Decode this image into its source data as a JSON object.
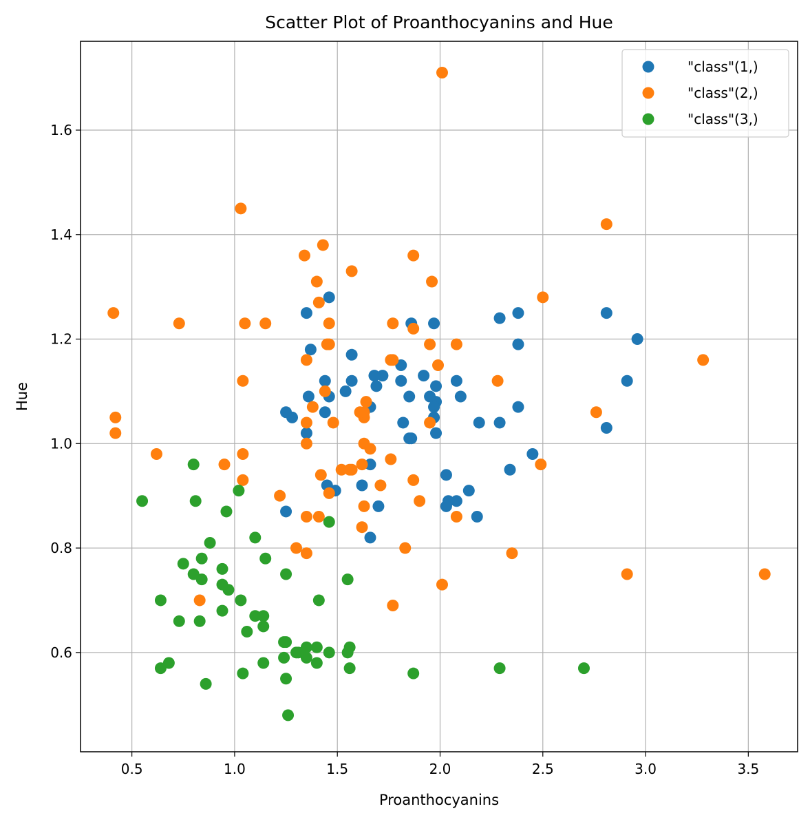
{
  "chart_data": {
    "type": "scatter",
    "title": "Scatter Plot of Proanthocyanins and Hue",
    "xlabel": "Proanthocyanins",
    "ylabel": "Hue",
    "xlim": [
      0.25,
      3.74
    ],
    "ylim": [
      0.41,
      1.77
    ],
    "xticks": [
      0.5,
      1.0,
      1.5,
      2.0,
      2.5,
      3.0,
      3.5
    ],
    "xtick_labels": [
      "0.5",
      "1.0",
      "1.5",
      "2.0",
      "2.5",
      "3.0",
      "3.5"
    ],
    "yticks": [
      0.6,
      0.8,
      1.0,
      1.2,
      1.4,
      1.6
    ],
    "ytick_labels": [
      "0.6",
      "0.8",
      "1.0",
      "1.2",
      "1.4",
      "1.6"
    ],
    "grid": true,
    "legend_position": "top-right",
    "series": [
      {
        "name": "\"class\"(1,)",
        "color": "#1f77b4",
        "points": [
          [
            2.29,
            1.04
          ],
          [
            1.28,
            1.05
          ],
          [
            2.81,
            1.03
          ],
          [
            2.18,
            0.86
          ],
          [
            1.82,
            1.04
          ],
          [
            1.97,
            1.05
          ],
          [
            1.98,
            1.02
          ],
          [
            1.25,
            1.06
          ],
          [
            1.98,
            1.08
          ],
          [
            1.85,
            1.01
          ],
          [
            2.38,
            1.25
          ],
          [
            1.57,
            1.17
          ],
          [
            1.81,
            1.15
          ],
          [
            2.81,
            1.25
          ],
          [
            2.96,
            1.2
          ],
          [
            1.46,
            1.28
          ],
          [
            1.97,
            1.07
          ],
          [
            1.72,
            1.13
          ],
          [
            1.86,
            1.23
          ],
          [
            1.66,
            0.96
          ],
          [
            2.1,
            1.09
          ],
          [
            1.25,
            0.87
          ],
          [
            1.98,
            1.11
          ],
          [
            1.85,
            1.09
          ],
          [
            2.38,
            1.07
          ],
          [
            1.57,
            1.12
          ],
          [
            1.81,
            1.12
          ],
          [
            1.35,
            1.25
          ],
          [
            2.03,
            0.94
          ],
          [
            1.66,
            0.82
          ],
          [
            1.45,
            0.92
          ],
          [
            1.69,
            1.11
          ],
          [
            1.62,
            0.92
          ],
          [
            2.08,
            0.89
          ],
          [
            2.34,
            0.95
          ],
          [
            1.46,
            1.09
          ],
          [
            1.35,
            1.02
          ],
          [
            2.29,
            1.24
          ],
          [
            2.19,
            1.04
          ],
          [
            1.66,
            1.07
          ],
          [
            2.14,
            0.91
          ],
          [
            2.38,
            1.19
          ],
          [
            1.54,
            1.1
          ],
          [
            1.37,
            1.18
          ],
          [
            1.95,
            1.09
          ],
          [
            1.44,
            1.12
          ],
          [
            2.45,
            0.98
          ],
          [
            2.91,
            1.12
          ],
          [
            2.03,
            0.88
          ],
          [
            2.04,
            0.89
          ],
          [
            1.68,
            1.13
          ],
          [
            1.7,
            0.88
          ],
          [
            1.86,
            1.01
          ],
          [
            2.08,
            1.12
          ],
          [
            1.49,
            0.91
          ],
          [
            1.36,
            1.09
          ],
          [
            1.92,
            1.13
          ],
          [
            1.97,
            1.23
          ],
          [
            1.44,
            1.06
          ]
        ]
      },
      {
        "name": "\"class\"(2,)",
        "color": "#ff7f0e",
        "points": [
          [
            0.42,
            1.05
          ],
          [
            0.73,
            1.23
          ],
          [
            1.87,
            1.22
          ],
          [
            1.04,
            0.98
          ],
          [
            2.5,
            1.28
          ],
          [
            1.46,
            0.905
          ],
          [
            1.87,
            0.93
          ],
          [
            1.03,
            1.45
          ],
          [
            1.04,
            1.12
          ],
          [
            1.05,
            1.23
          ],
          [
            1.35,
            1.16
          ],
          [
            1.63,
            1.05
          ],
          [
            1.4,
            1.31
          ],
          [
            2.01,
            1.71
          ],
          [
            0.62,
            0.98
          ],
          [
            0.41,
            1.25
          ],
          [
            0.95,
            0.96
          ],
          [
            1.15,
            1.23
          ],
          [
            1.46,
            1.19
          ],
          [
            0.83,
            0.7
          ],
          [
            1.87,
            1.36
          ],
          [
            1.57,
            1.33
          ],
          [
            1.43,
            1.38
          ],
          [
            1.77,
            0.69
          ],
          [
            1.9,
            0.89
          ],
          [
            1.41,
            0.86
          ],
          [
            1.42,
            0.94
          ],
          [
            1.3,
            0.8
          ],
          [
            1.35,
            0.86
          ],
          [
            1.62,
            0.84
          ],
          [
            1.57,
            0.95
          ],
          [
            1.62,
            0.96
          ],
          [
            1.63,
            1.0
          ],
          [
            1.99,
            1.15
          ],
          [
            1.35,
            0.79
          ],
          [
            2.28,
            1.12
          ],
          [
            1.04,
            0.93
          ],
          [
            1.44,
            1.1
          ],
          [
            1.64,
            1.08
          ],
          [
            1.56,
            0.95
          ],
          [
            1.77,
            1.16
          ],
          [
            2.08,
            0.86
          ],
          [
            1.63,
            0.88
          ],
          [
            0.42,
            1.02
          ],
          [
            1.34,
            1.36
          ],
          [
            1.22,
            0.9
          ],
          [
            2.76,
            1.06
          ],
          [
            1.66,
            0.99
          ],
          [
            2.35,
            0.79
          ],
          [
            2.91,
            0.75
          ],
          [
            1.35,
            1.04
          ],
          [
            3.28,
            1.16
          ],
          [
            2.49,
            0.96
          ],
          [
            1.41,
            1.27
          ],
          [
            1.76,
            0.97
          ],
          [
            1.52,
            0.95
          ],
          [
            1.46,
            1.23
          ],
          [
            1.35,
            1.0
          ],
          [
            1.63,
            1.06
          ],
          [
            1.77,
            1.23
          ],
          [
            1.95,
            1.19
          ],
          [
            1.71,
            0.92
          ],
          [
            1.83,
            0.8
          ],
          [
            1.95,
            1.04
          ],
          [
            1.48,
            1.04
          ],
          [
            2.01,
            0.73
          ],
          [
            2.81,
            1.42
          ],
          [
            2.08,
            1.19
          ],
          [
            1.61,
            1.06
          ],
          [
            1.76,
            1.16
          ],
          [
            3.58,
            0.75
          ],
          [
            1.96,
            1.31
          ],
          [
            1.38,
            1.07
          ],
          [
            1.45,
            1.19
          ]
        ]
      },
      {
        "name": "\"class\"(3,)",
        "color": "#2ca02c",
        "points": [
          [
            1.26,
            0.48
          ],
          [
            0.94,
            0.73
          ],
          [
            1.03,
            0.7
          ],
          [
            0.68,
            0.58
          ],
          [
            0.86,
            0.54
          ],
          [
            1.25,
            0.55
          ],
          [
            0.84,
            0.74
          ],
          [
            1.35,
            0.59
          ],
          [
            1.46,
            0.6
          ],
          [
            1.4,
            0.61
          ],
          [
            0.97,
            0.72
          ],
          [
            1.14,
            0.58
          ],
          [
            1.1,
            0.67
          ],
          [
            1.04,
            0.56
          ],
          [
            0.64,
            0.57
          ],
          [
            1.14,
            0.67
          ],
          [
            0.8,
            0.75
          ],
          [
            1.15,
            0.78
          ],
          [
            1.06,
            0.64
          ],
          [
            1.46,
            0.85
          ],
          [
            1.25,
            0.75
          ],
          [
            1.24,
            0.59
          ],
          [
            1.55,
            0.74
          ],
          [
            0.96,
            0.87
          ],
          [
            0.94,
            0.76
          ],
          [
            1.14,
            0.65
          ],
          [
            0.83,
            0.66
          ],
          [
            1.1,
            0.82
          ],
          [
            0.73,
            0.66
          ],
          [
            0.88,
            0.81
          ],
          [
            0.75,
            0.77
          ],
          [
            1.02,
            0.91
          ],
          [
            1.41,
            0.7
          ],
          [
            1.35,
            0.61
          ],
          [
            0.84,
            0.78
          ],
          [
            0.64,
            0.7
          ],
          [
            1.25,
            0.62
          ],
          [
            1.56,
            0.61
          ],
          [
            1.24,
            0.62
          ],
          [
            1.3,
            0.6
          ],
          [
            2.29,
            0.57
          ],
          [
            1.87,
            0.56
          ],
          [
            0.81,
            0.89
          ],
          [
            1.56,
            0.57
          ],
          [
            0.55,
            0.89
          ],
          [
            0.8,
            0.96
          ],
          [
            0.94,
            0.68
          ],
          [
            1.4,
            0.58
          ],
          [
            2.7,
            0.57
          ],
          [
            1.55,
            0.6
          ],
          [
            1.31,
            0.6
          ]
        ]
      }
    ]
  }
}
